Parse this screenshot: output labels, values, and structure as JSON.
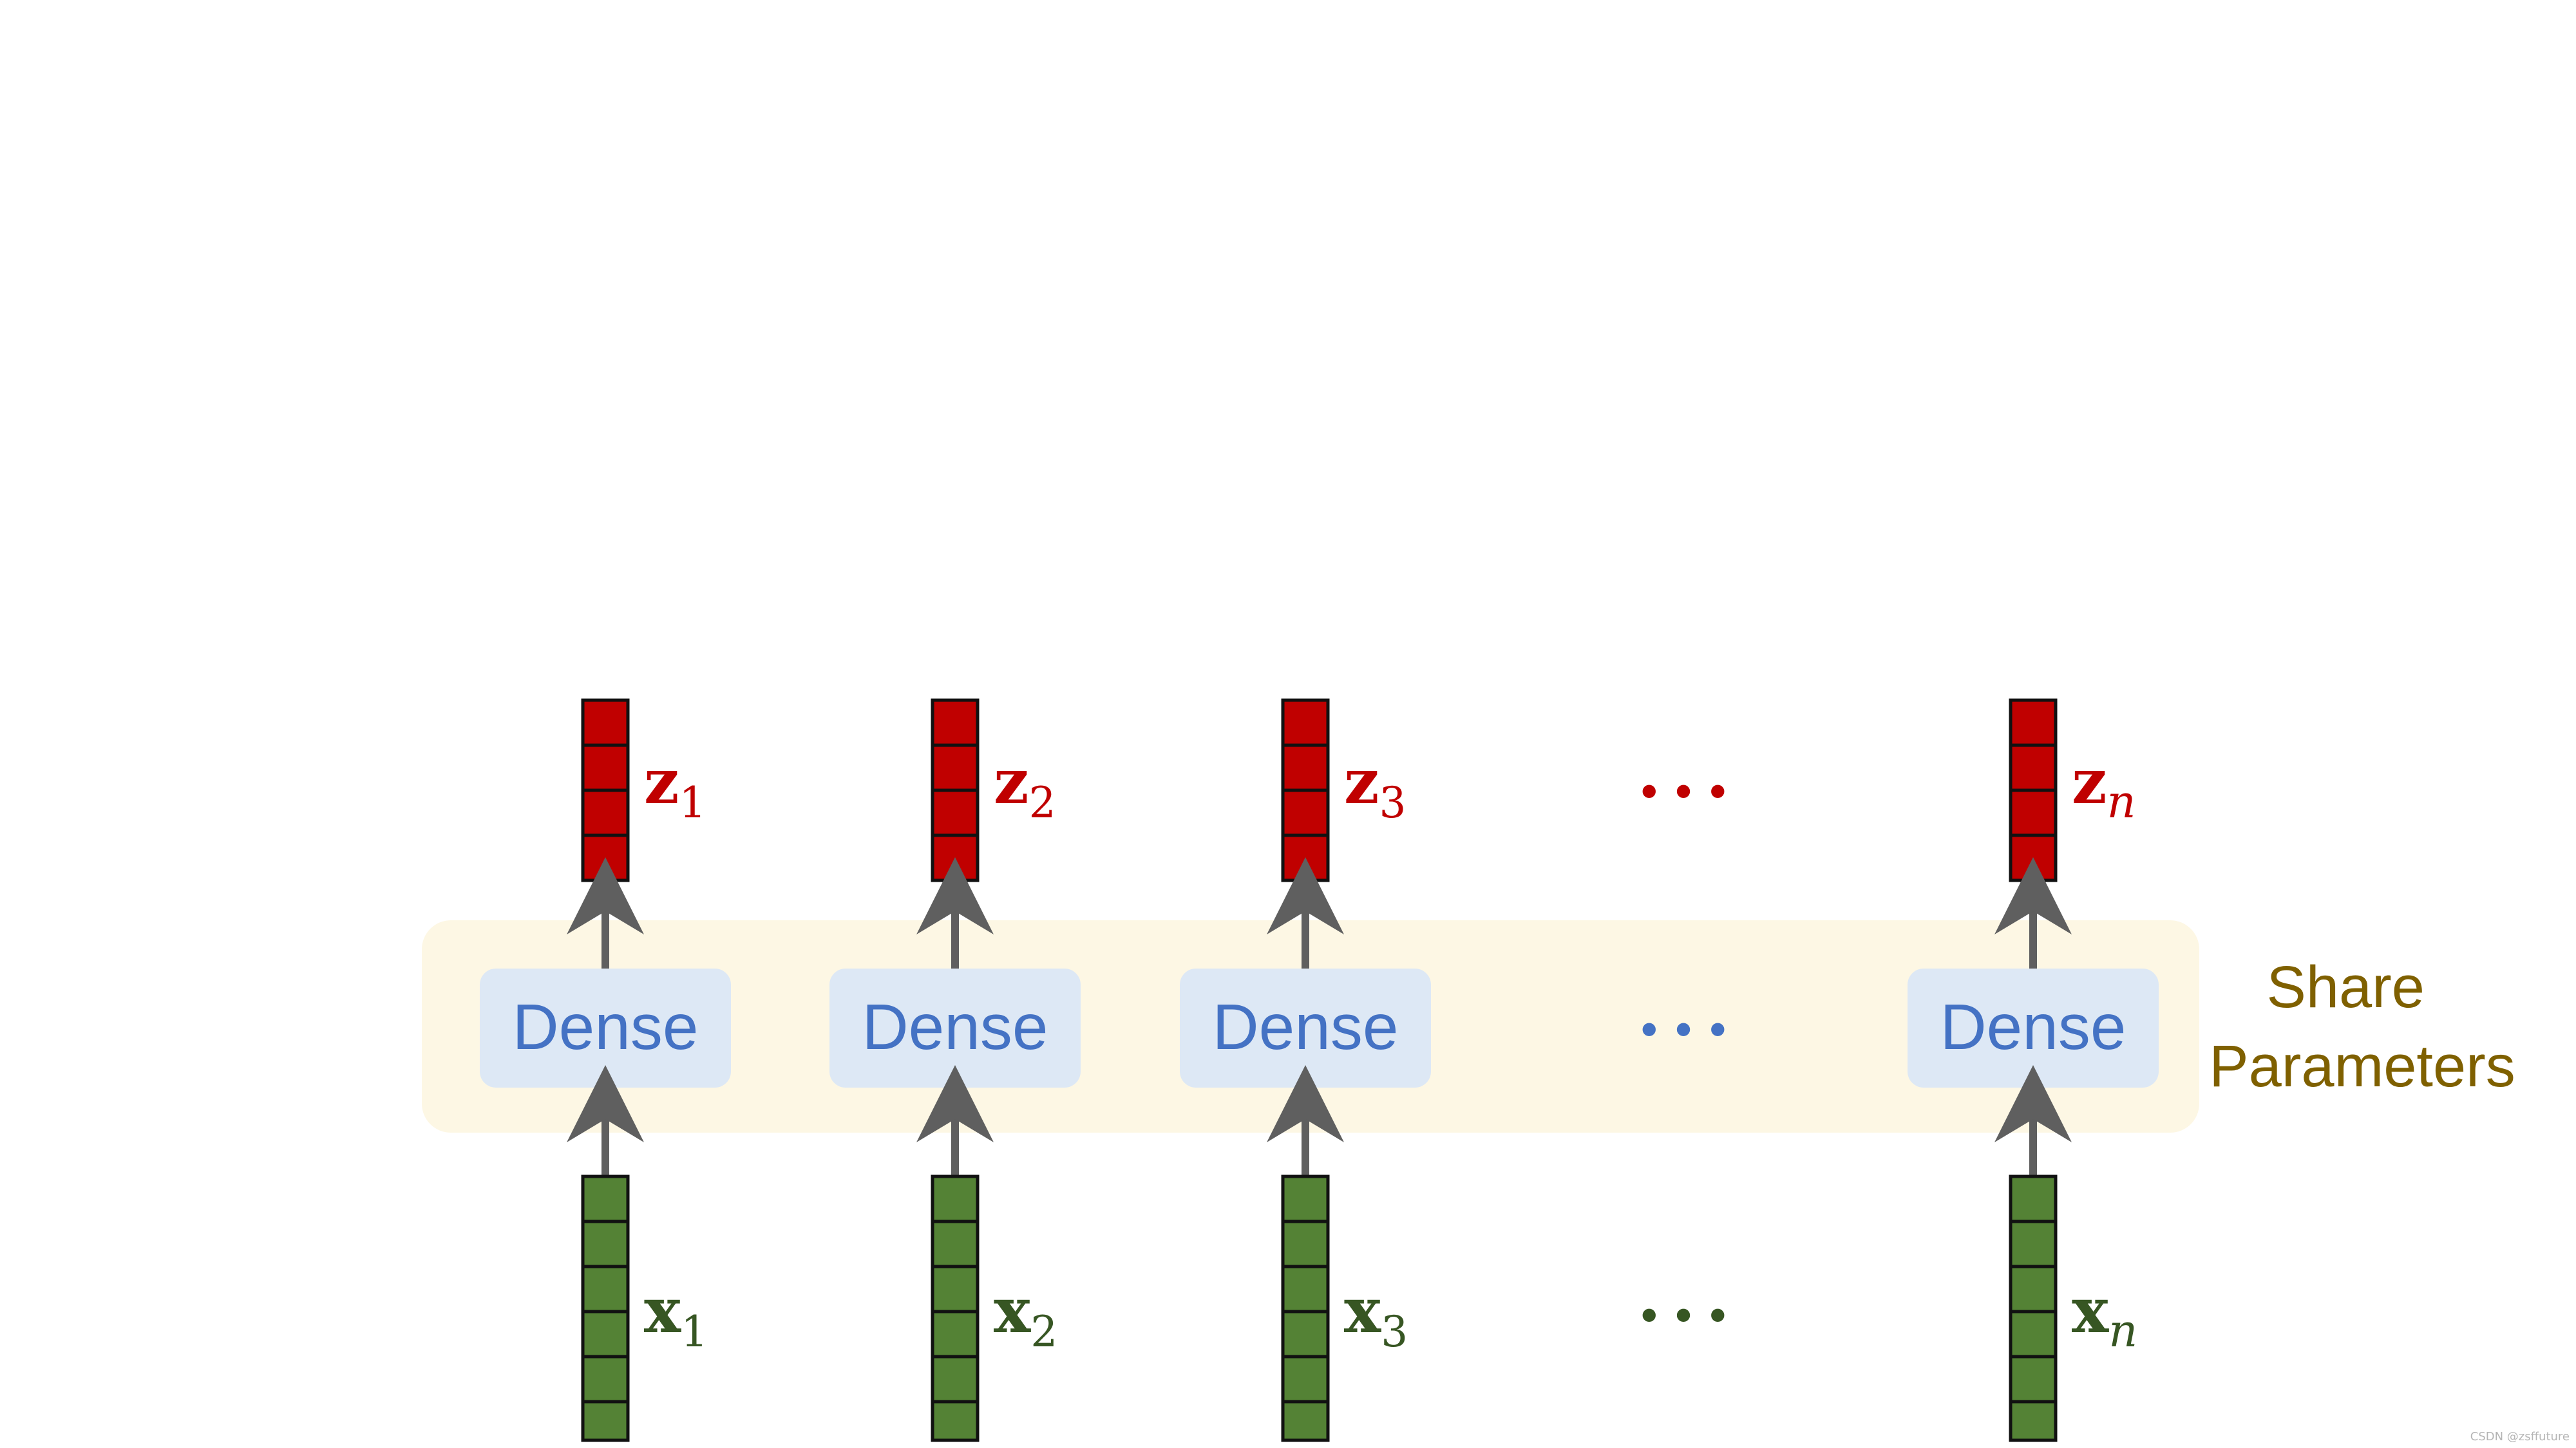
{
  "shared_band": {
    "label_line1": "Share",
    "label_line2": "Parameters"
  },
  "columns": [
    {
      "dense": "Dense",
      "x_base": "x",
      "x_sub": "1",
      "z_base": "z",
      "z_sub": "1"
    },
    {
      "dense": "Dense",
      "x_base": "x",
      "x_sub": "2",
      "z_base": "z",
      "z_sub": "2"
    },
    {
      "dense": "Dense",
      "x_base": "x",
      "x_sub": "3",
      "z_base": "z",
      "z_sub": "3"
    },
    {
      "dense": "Dense",
      "x_base": "x",
      "x_sub": "n",
      "z_base": "z",
      "z_sub": "n"
    }
  ],
  "ellipsis": {
    "top": "•••",
    "middle": "•••",
    "bottom": "•••"
  },
  "watermark": "CSDN @zsffuture",
  "colors": {
    "band_fill": "#fdf7e4",
    "dense_fill": "#dde8f5",
    "dense_text": "#4472c4",
    "input_vector": "#548235",
    "input_label": "#375623",
    "output_vector": "#c00000",
    "output_label": "#c00000",
    "arrow": "#5f5f5f",
    "share_text": "#7f6000"
  }
}
